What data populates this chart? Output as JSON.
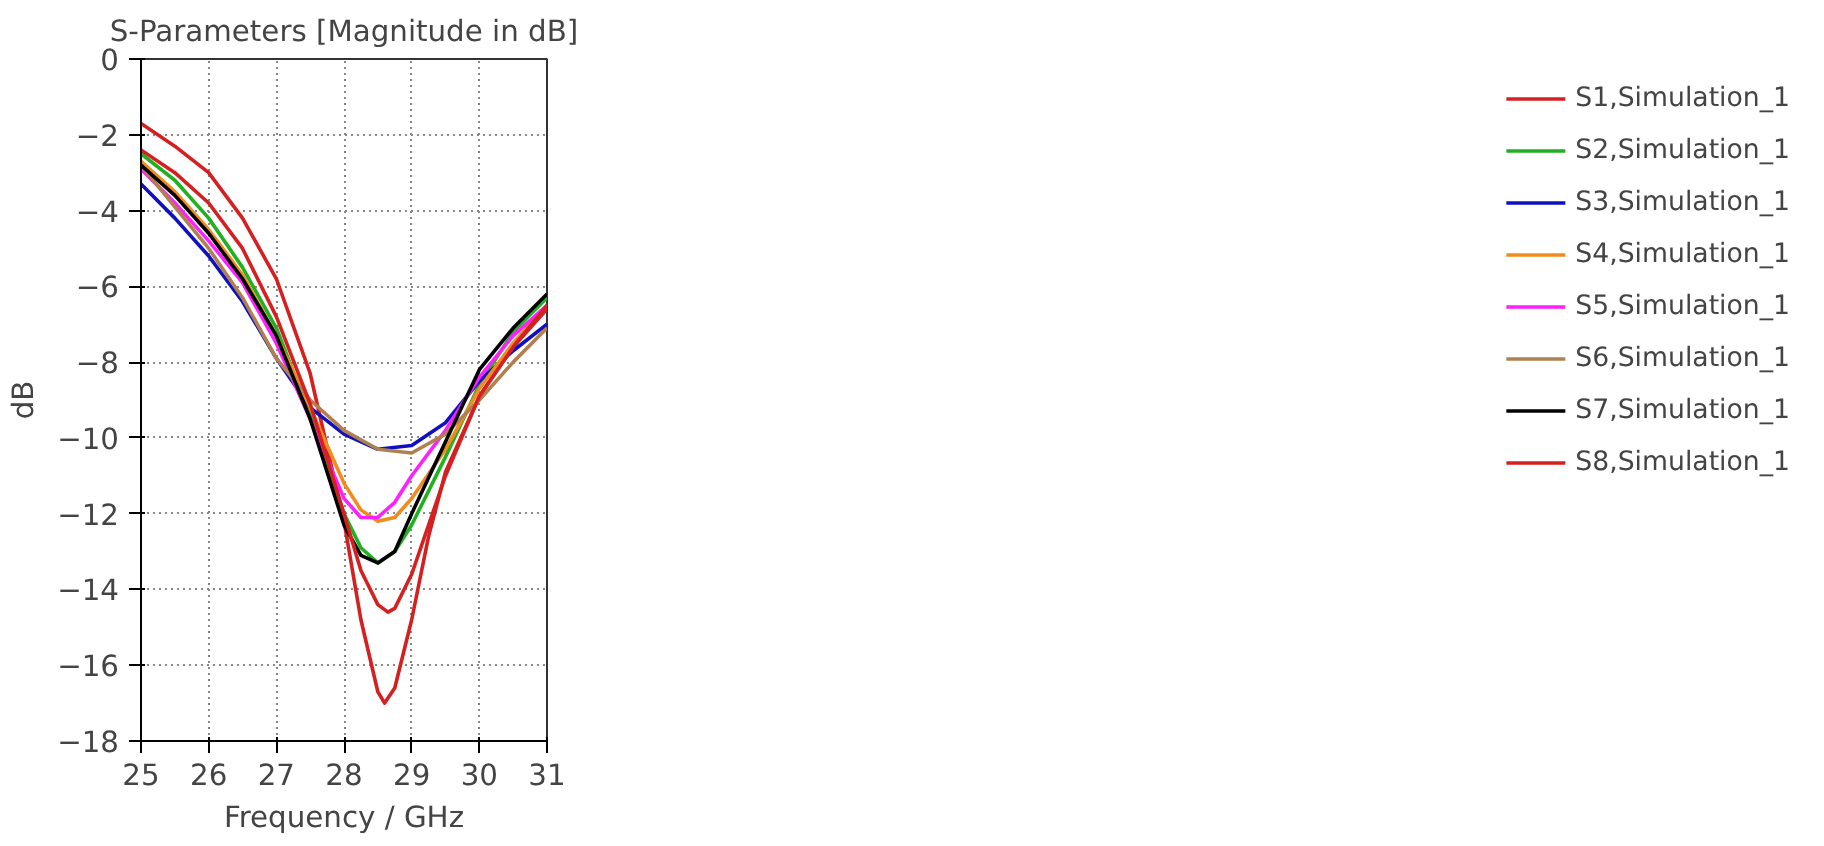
{
  "chart_data": {
    "type": "line",
    "title": "S-Parameters [Magnitude in dB]",
    "xlabel": "Frequency / GHz",
    "ylabel": "dB",
    "xlim": [
      25,
      31
    ],
    "ylim": [
      -18,
      0
    ],
    "xticks": [
      25,
      26,
      27,
      28,
      29,
      30,
      31
    ],
    "yticks": [
      -18,
      -16,
      -14,
      -12,
      -10,
      -8,
      -6,
      -4,
      -2,
      0
    ],
    "grid": true,
    "legend": "right",
    "line_style": "solid",
    "marker": "none",
    "series": [
      {
        "name": "S1,Simulation_1",
        "color": "#d42020",
        "x": [
          25,
          25.5,
          26,
          26.5,
          27,
          27.5,
          28,
          28.25,
          28.5,
          28.6,
          28.75,
          29,
          29.25,
          29.5,
          30,
          30.5,
          31
        ],
        "values": [
          -1.7,
          -2.3,
          -3.0,
          -4.2,
          -5.8,
          -8.3,
          -12.2,
          -14.8,
          -16.7,
          -17.0,
          -16.6,
          -14.8,
          -12.6,
          -10.9,
          -8.9,
          -7.6,
          -6.6
        ]
      },
      {
        "name": "S2,Simulation_1",
        "color": "#20b020",
        "x": [
          25,
          25.5,
          26,
          26.5,
          27,
          27.5,
          28,
          28.25,
          28.5,
          28.75,
          29,
          29.5,
          30,
          30.5,
          31
        ],
        "values": [
          -2.5,
          -3.2,
          -4.2,
          -5.5,
          -7.1,
          -9.4,
          -12.0,
          -12.9,
          -13.3,
          -13.0,
          -12.3,
          -10.5,
          -8.6,
          -7.2,
          -6.3
        ]
      },
      {
        "name": "S3,Simulation_1",
        "color": "#1010c0",
        "x": [
          25,
          25.5,
          26,
          26.5,
          27,
          27.5,
          28,
          28.5,
          29,
          29.5,
          30,
          30.5,
          31
        ],
        "values": [
          -3.3,
          -4.2,
          -5.2,
          -6.4,
          -7.9,
          -9.2,
          -9.9,
          -10.3,
          -10.2,
          -9.6,
          -8.5,
          -7.7,
          -7.0
        ]
      },
      {
        "name": "S4,Simulation_1",
        "color": "#f08c1e",
        "x": [
          25,
          25.5,
          26,
          26.5,
          27,
          27.5,
          28,
          28.25,
          28.5,
          28.75,
          29,
          29.5,
          30,
          30.5,
          31
        ],
        "values": [
          -2.7,
          -3.5,
          -4.5,
          -5.7,
          -7.3,
          -9.2,
          -11.2,
          -11.9,
          -12.2,
          -12.1,
          -11.6,
          -10.3,
          -8.7,
          -7.5,
          -6.5
        ]
      },
      {
        "name": "S5,Simulation_1",
        "color": "#ff20ff",
        "x": [
          25,
          25.5,
          26,
          26.5,
          27,
          27.5,
          28,
          28.25,
          28.5,
          28.75,
          29,
          29.5,
          30,
          30.5,
          31
        ],
        "values": [
          -2.9,
          -3.8,
          -4.8,
          -5.9,
          -7.5,
          -9.5,
          -11.6,
          -12.1,
          -12.1,
          -11.7,
          -11.0,
          -9.8,
          -8.4,
          -7.3,
          -6.5
        ]
      },
      {
        "name": "S6,Simulation_1",
        "color": "#b08050",
        "x": [
          25,
          25.5,
          26,
          26.5,
          27,
          27.5,
          28,
          28.5,
          29,
          29.5,
          30,
          30.5,
          31
        ],
        "values": [
          -2.8,
          -3.9,
          -5.0,
          -6.3,
          -7.9,
          -9.0,
          -9.8,
          -10.3,
          -10.4,
          -9.9,
          -9.0,
          -8.0,
          -7.1
        ]
      },
      {
        "name": "S7,Simulation_1",
        "color": "#000000",
        "x": [
          25,
          25.5,
          26,
          26.5,
          27,
          27.5,
          28,
          28.25,
          28.5,
          28.75,
          29,
          29.5,
          30,
          30.5,
          31
        ],
        "values": [
          -2.8,
          -3.6,
          -4.6,
          -5.8,
          -7.3,
          -9.5,
          -12.3,
          -13.1,
          -13.3,
          -13.0,
          -12.0,
          -10.1,
          -8.2,
          -7.1,
          -6.2
        ]
      },
      {
        "name": "S8,Simulation_1",
        "color": "#d42020",
        "x": [
          25,
          25.5,
          26,
          26.5,
          27,
          27.5,
          28,
          28.25,
          28.5,
          28.65,
          28.75,
          29,
          29.5,
          30,
          30.5,
          31
        ],
        "values": [
          -2.4,
          -3.0,
          -3.8,
          -5.0,
          -6.8,
          -9.1,
          -12.0,
          -13.5,
          -14.4,
          -14.6,
          -14.5,
          -13.6,
          -11.0,
          -8.9,
          -7.6,
          -6.5
        ]
      }
    ]
  }
}
